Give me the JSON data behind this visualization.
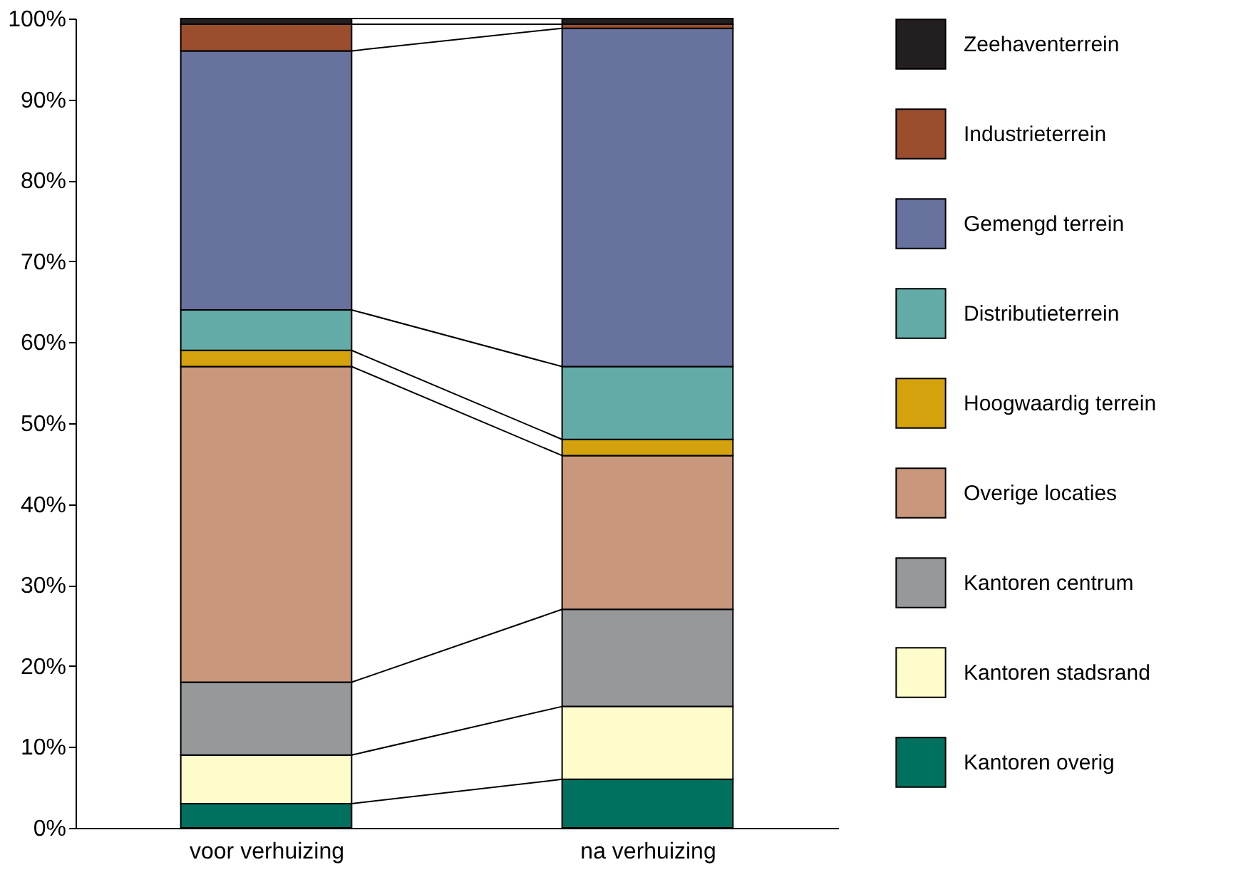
{
  "chart_data": {
    "type": "bar",
    "stacked": true,
    "categories": [
      "voor verhuizing",
      "na verhuizing"
    ],
    "series": [
      {
        "name": "Kantoren overig",
        "color": "#00705f",
        "values": [
          3,
          6
        ]
      },
      {
        "name": "Kantoren stadsrand",
        "color": "#fffccb",
        "values": [
          6,
          9
        ]
      },
      {
        "name": "Kantoren centrum",
        "color": "#97989a",
        "values": [
          9,
          12
        ]
      },
      {
        "name": "Overige locaties",
        "color": "#c9977c",
        "values": [
          39,
          19
        ]
      },
      {
        "name": "Hoogwaardig terrein",
        "color": "#d4a20c",
        "values": [
          2,
          2
        ]
      },
      {
        "name": "Distributieterrein",
        "color": "#62aba6",
        "values": [
          5,
          9
        ]
      },
      {
        "name": "Gemengd terrein",
        "color": "#67729f",
        "values": [
          32,
          41.8
        ]
      },
      {
        "name": "Industrieterrein",
        "color": "#9a4e2e",
        "values": [
          3.3,
          0.5
        ]
      },
      {
        "name": "Zeehaventerrein",
        "color": "#231f20",
        "values": [
          0.7,
          0.7
        ]
      }
    ],
    "ylim": [
      0,
      100
    ],
    "yticks": [
      {
        "value": 0,
        "label": "0%"
      },
      {
        "value": 10,
        "label": "10%"
      },
      {
        "value": 20,
        "label": "20%"
      },
      {
        "value": 30,
        "label": "30%"
      },
      {
        "value": 40,
        "label": "40%"
      },
      {
        "value": 50,
        "label": "50%"
      },
      {
        "value": 60,
        "label": "60%"
      },
      {
        "value": 70,
        "label": "70%"
      },
      {
        "value": 80,
        "label": "80%"
      },
      {
        "value": 90,
        "label": "90%"
      },
      {
        "value": 100,
        "label": "100%"
      }
    ],
    "legend": "right",
    "grid": false
  }
}
